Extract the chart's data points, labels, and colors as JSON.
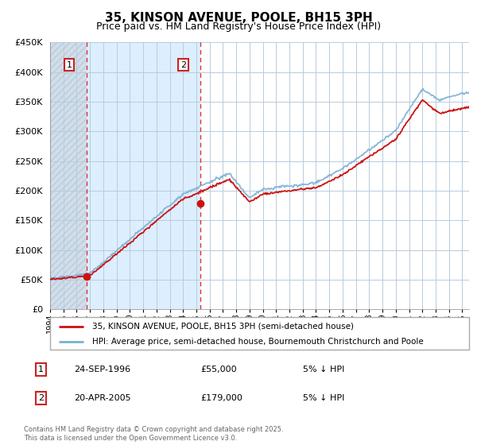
{
  "title": "35, KINSON AVENUE, POOLE, BH15 3PH",
  "subtitle": "Price paid vs. HM Land Registry's House Price Index (HPI)",
  "ylim": [
    0,
    450000
  ],
  "yticks": [
    0,
    50000,
    100000,
    150000,
    200000,
    250000,
    300000,
    350000,
    400000,
    450000
  ],
  "xlim_start": 1994.0,
  "xlim_end": 2025.5,
  "sale1_date": 1996.73,
  "sale1_price": 55000,
  "sale2_date": 2005.3,
  "sale2_price": 179000,
  "legend_entry1": "35, KINSON AVENUE, POOLE, BH15 3PH (semi-detached house)",
  "legend_entry2": "HPI: Average price, semi-detached house, Bournemouth Christchurch and Poole",
  "hpi_color": "#7ab0d4",
  "price_color": "#cc1111",
  "bg_color": "#ddeeff",
  "hatch_bg": "#d0d8e8",
  "grid_color": "#b8ccdd",
  "label_color": "#333333"
}
